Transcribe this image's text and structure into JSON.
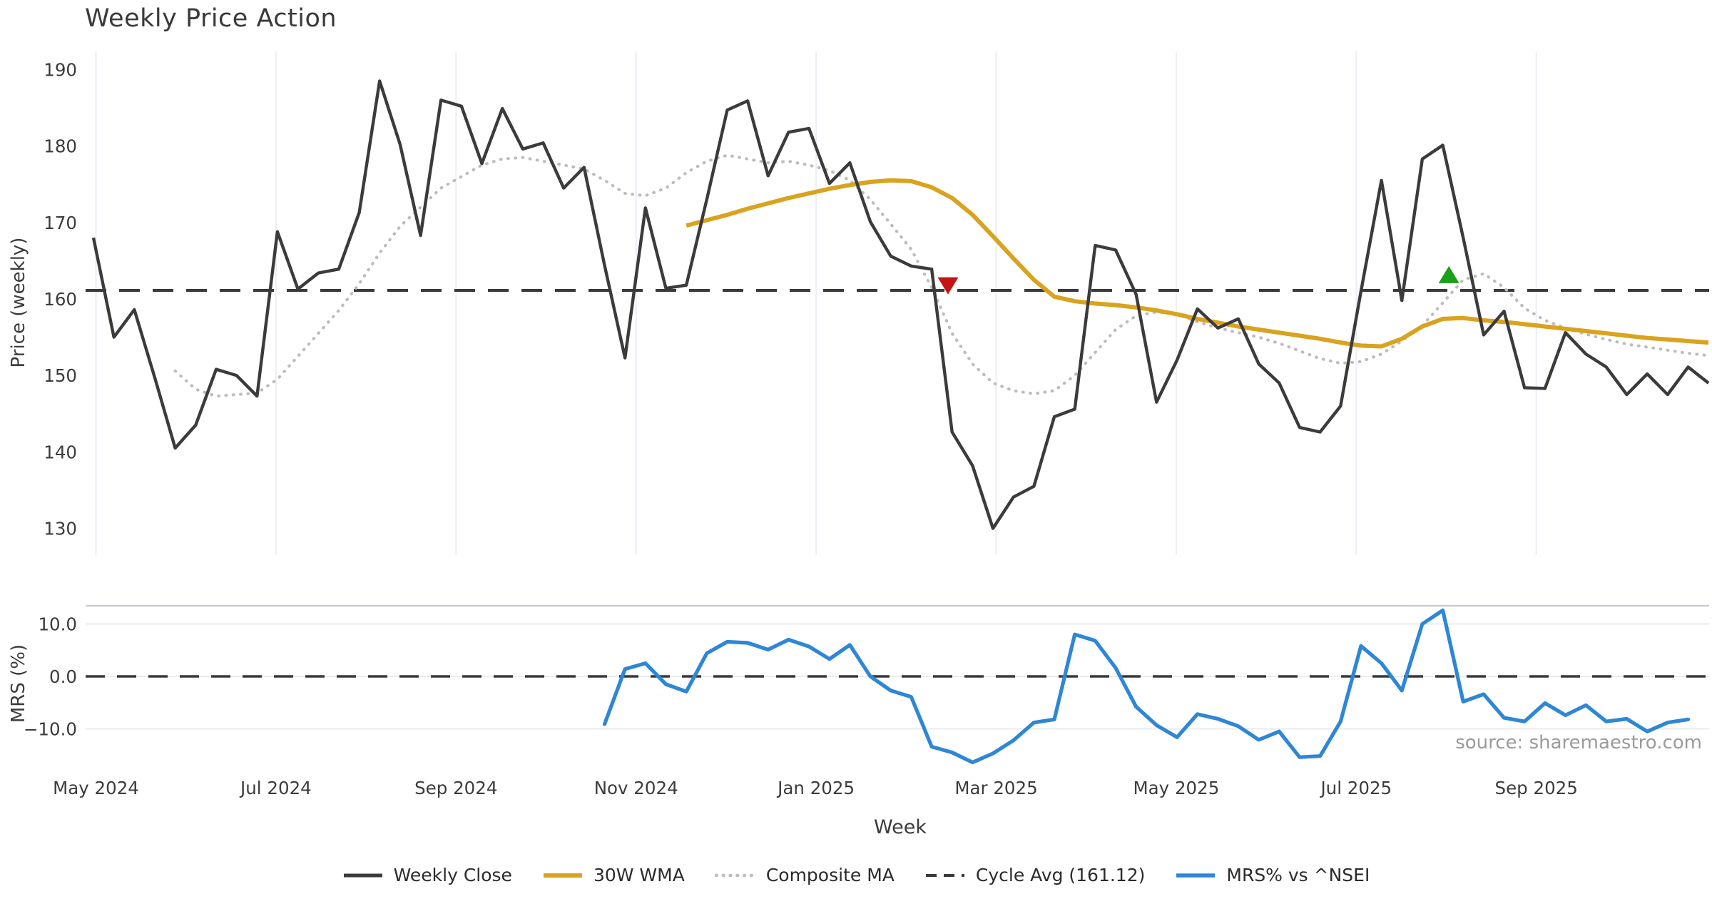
{
  "title": "Weekly Price Action",
  "source_note": "source: sharemaestro.com",
  "axes": {
    "price_ylabel": "Price (weekly)",
    "mrs_ylabel": "MRS (%)",
    "xlabel": "Week",
    "price_ytick_labels": [
      "190",
      "180",
      "170",
      "160",
      "150",
      "140",
      "130"
    ],
    "price_ytick_values": [
      190,
      180,
      170,
      160,
      150,
      140,
      130
    ],
    "mrs_ytick_labels": [
      "10.0",
      "0.0",
      "−10.0"
    ],
    "mrs_ytick_values": [
      10,
      0,
      -10
    ],
    "xtick_labels": [
      "May 2024",
      "Jul 2024",
      "Sep 2024",
      "Nov 2024",
      "Jan 2025",
      "Mar 2025",
      "May 2025",
      "Jul 2025",
      "Sep 2025"
    ]
  },
  "colors": {
    "weekly_close": "#3b3b3b",
    "wma30": "#d9a31f",
    "composite_ma": "#bdbdbd",
    "cycle_avg": "#3a3a3a",
    "mrs": "#2e86d6",
    "marker_sell": "#c41414",
    "marker_buy": "#1aa01a",
    "gridline": "#eceef4",
    "mrs_gridline": "#ececec",
    "mrs_spine": "#c9ccd1",
    "tick_text": "#3c3c3c"
  },
  "legend": {
    "items": [
      {
        "label": "Weekly Close",
        "color": "#3b3b3b",
        "style": "solid",
        "width": 5
      },
      {
        "label": "30W WMA",
        "color": "#d9a31f",
        "style": "solid",
        "width": 6
      },
      {
        "label": "Composite MA",
        "color": "#bdbdbd",
        "style": "dotted",
        "width": 4.5
      },
      {
        "label": "Cycle Avg (161.12)",
        "color": "#3a3a3a",
        "style": "dashed",
        "width": 4
      },
      {
        "label": "MRS% vs ^NSEI",
        "color": "#2e86d6",
        "style": "solid",
        "width": 5.5
      }
    ]
  },
  "chart_data": [
    {
      "type": "line",
      "panel": "price",
      "ylabel": "Price (weekly)",
      "ylim": [
        127,
        193
      ],
      "yticks": [
        130,
        140,
        150,
        160,
        170,
        180,
        190
      ],
      "x_unit": "week",
      "cycle_avg": 161.12,
      "series": [
        {
          "name": "Weekly Close",
          "color": "#3b3b3b",
          "style": "solid",
          "start_week": 0,
          "values": [
            168.0,
            155.0,
            158.6,
            149.7,
            140.5,
            143.5,
            150.8,
            150.0,
            147.3,
            168.8,
            161.3,
            163.4,
            163.9,
            171.3,
            188.5,
            180.2,
            168.3,
            186.0,
            185.2,
            177.7,
            184.9,
            179.6,
            180.4,
            174.5,
            177.2,
            164.4,
            152.3,
            171.9,
            161.4,
            161.8,
            173.0,
            184.7,
            185.9,
            176.1,
            181.8,
            182.3,
            175.1,
            177.8,
            170.1,
            165.6,
            164.3,
            163.9,
            142.6,
            138.2,
            130.0,
            134.1,
            135.5,
            144.6,
            145.6,
            167.0,
            166.4,
            160.6,
            146.5,
            152.0,
            158.7,
            156.2,
            157.4,
            151.5,
            149.0,
            143.2,
            142.6,
            146.0,
            161.0,
            175.5,
            159.8,
            178.3,
            180.1,
            168.0,
            155.3,
            158.4,
            148.4,
            148.3,
            155.6,
            152.8,
            151.1,
            147.5,
            150.2,
            147.5,
            151.1,
            149.0
          ]
        },
        {
          "name": "30W WMA",
          "color": "#d9a31f",
          "style": "solid",
          "start_week": 29,
          "values": [
            169.6,
            170.3,
            171.0,
            171.8,
            172.5,
            173.2,
            173.8,
            174.4,
            174.9,
            175.3,
            175.5,
            175.4,
            174.6,
            173.2,
            171.0,
            168.2,
            165.3,
            162.5,
            160.3,
            159.7,
            159.4,
            159.2,
            158.9,
            158.5,
            158.0,
            157.4,
            156.9,
            156.4,
            156.0,
            155.6,
            155.2,
            154.8,
            154.3,
            153.9,
            153.8,
            154.8,
            156.4,
            157.4,
            157.5,
            157.2,
            157.0,
            156.7,
            156.4,
            156.1,
            155.8,
            155.5,
            155.2,
            154.9,
            154.7,
            154.5,
            154.3
          ]
        },
        {
          "name": "Composite MA",
          "color": "#bdbdbd",
          "style": "dotted",
          "start_week": 4,
          "values": [
            150.6,
            148.2,
            147.3,
            147.5,
            147.7,
            149.5,
            152.5,
            155.5,
            158.5,
            162.0,
            166.0,
            169.5,
            172.0,
            174.5,
            176.0,
            177.5,
            178.3,
            178.5,
            178.0,
            177.5,
            177.0,
            175.5,
            173.8,
            173.5,
            174.5,
            176.5,
            178.0,
            178.8,
            178.3,
            177.8,
            178.0,
            177.5,
            176.8,
            175.5,
            173.0,
            169.8,
            166.5,
            161.5,
            155.5,
            151.5,
            149.0,
            148.0,
            147.6,
            148.0,
            150.0,
            153.0,
            156.0,
            157.8,
            158.3,
            158.0,
            157.0,
            156.2,
            155.6,
            155.0,
            154.2,
            153.2,
            152.2,
            151.6,
            151.8,
            152.8,
            154.5,
            156.5,
            159.5,
            162.5,
            163.3,
            161.5,
            158.8,
            157.2,
            156.2,
            155.4,
            154.7,
            154.1,
            153.7,
            153.3,
            152.9,
            152.6
          ]
        },
        {
          "name": "Cycle Avg (161.12)",
          "color": "#3a3a3a",
          "style": "dashed",
          "value": 161.12
        }
      ],
      "markers": [
        {
          "shape": "triangle-down",
          "color": "#c41414",
          "week": 41.8,
          "value": 161.9
        },
        {
          "shape": "triangle-up",
          "color": "#1aa01a",
          "week": 66.3,
          "value": 163.0
        }
      ]
    },
    {
      "type": "line",
      "panel": "mrs",
      "ylabel": "MRS (%)",
      "xlabel": "Week",
      "ylim": [
        -18,
        13.5
      ],
      "yticks": [
        -10,
        0,
        10
      ],
      "zero_line_dashed": true,
      "series": [
        {
          "name": "MRS% vs ^NSEI",
          "color": "#2e86d6",
          "style": "solid",
          "start_week": 25,
          "values": [
            -9.1,
            1.4,
            2.5,
            -1.5,
            -2.9,
            4.4,
            6.6,
            6.4,
            5.1,
            7.0,
            5.7,
            3.3,
            6.0,
            0.0,
            -2.7,
            -3.9,
            -13.4,
            -14.5,
            -16.4,
            -14.7,
            -12.2,
            -8.8,
            -8.2,
            8.0,
            6.8,
            1.6,
            -5.8,
            -9.3,
            -11.6,
            -7.2,
            -8.1,
            -9.5,
            -12.1,
            -10.5,
            -15.4,
            -15.2,
            -8.6,
            5.8,
            2.5,
            -2.7,
            10.0,
            12.6,
            -4.8,
            -3.4,
            -7.9,
            -8.6,
            -5.1,
            -7.4,
            -5.5,
            -8.6,
            -8.1,
            -10.5,
            -8.8,
            -8.2
          ]
        }
      ]
    }
  ]
}
